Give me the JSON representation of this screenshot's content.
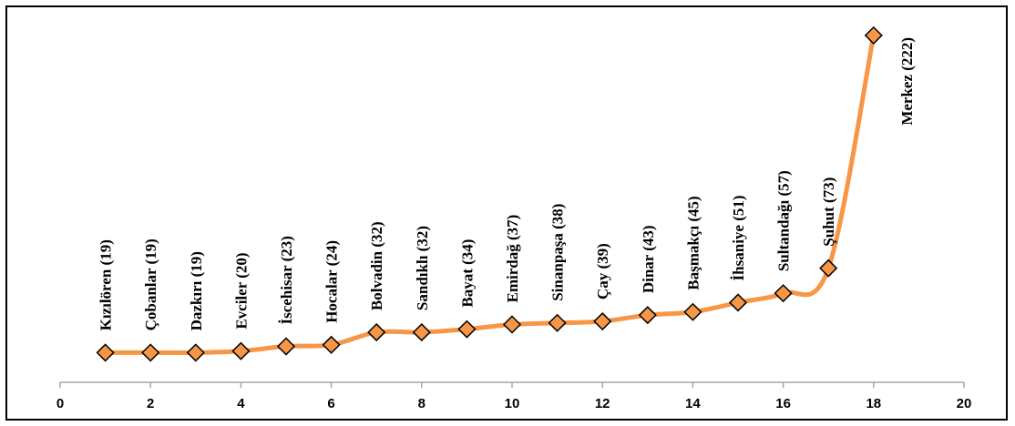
{
  "chart_data": {
    "type": "line",
    "title": "",
    "xlabel": "",
    "ylabel": "",
    "xlim": [
      0,
      20
    ],
    "xticks": [
      0,
      2,
      4,
      6,
      8,
      10,
      12,
      14,
      16,
      18,
      20
    ],
    "ylim": [
      0,
      240
    ],
    "y_axis_visible": false,
    "grid": false,
    "legend": "none",
    "series": [
      {
        "x": [
          1,
          2,
          3,
          4,
          5,
          6,
          7,
          8,
          9,
          10,
          11,
          12,
          13,
          14,
          15,
          16,
          17,
          18
        ],
        "values": [
          19,
          19,
          19,
          20,
          23,
          24,
          32,
          32,
          34,
          37,
          38,
          39,
          43,
          45,
          51,
          57,
          73,
          222
        ],
        "labels": [
          "Kızılören (19)",
          "Çobanlar (19)",
          "Dazkırı (19)",
          "Evciler (20)",
          "İscehisar (23)",
          "Hocalar (24)",
          "Bolvadin (32)",
          "Sandıklı (32)",
          "Bayat (34)",
          "Emirdağ (37)",
          "Sinanpaşa (38)",
          "Çay (39)",
          "Dinar (43)",
          "Başmakçı (45)",
          "İhsaniye (51)",
          "Sultandağı (57)",
          "Şuhut (73)",
          "Merkez (222)"
        ]
      }
    ],
    "colors": {
      "line": "#F79646",
      "marker_fill": "#F79646",
      "marker_stroke": "#000000",
      "axis": "#A6A6A6"
    }
  }
}
